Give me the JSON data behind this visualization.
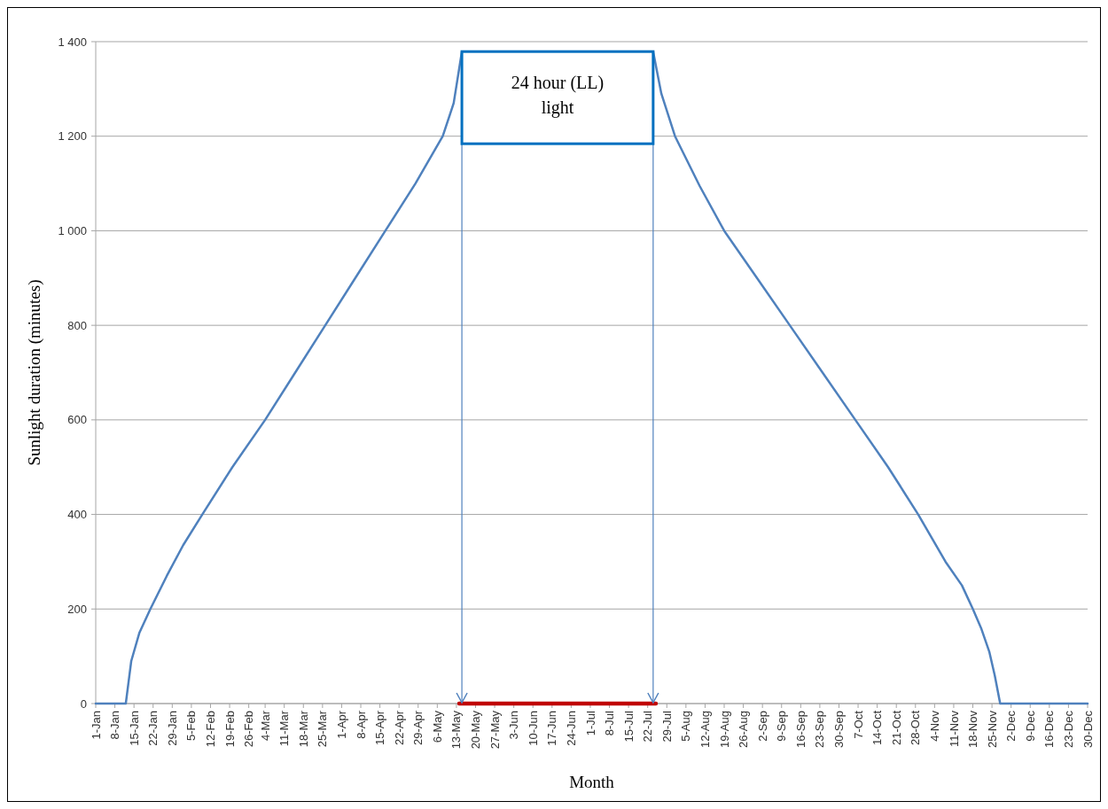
{
  "chart_data": {
    "type": "line",
    "xlabel": "Month",
    "ylabel": "Sunlight duration (minutes)",
    "series": [
      {
        "color": "#4f81bd",
        "x": [
          "--01-01",
          "--01-12",
          "--01-14",
          "--01-17",
          "--01-21",
          "--01-27",
          "--02-02",
          "--02-09",
          "--02-20",
          "--03-04",
          "--03-15",
          "--03-26",
          "--04-06",
          "--04-17",
          "--04-28",
          "--05-08",
          "--05-12",
          "--05-15"
        ],
        "values": [
          0,
          0,
          90,
          150,
          200,
          270,
          335,
          400,
          500,
          600,
          700,
          800,
          900,
          1000,
          1100,
          1200,
          1270,
          1379
        ]
      },
      {
        "color": "#4f81bd",
        "x": [
          "--07-24",
          "--07-27",
          "--08-01",
          "--08-10",
          "--08-19",
          "--08-31",
          "--09-12",
          "--09-24",
          "--10-06",
          "--10-18",
          "--10-29",
          "--11-08",
          "--11-14",
          "--11-18",
          "--11-21",
          "--11-24",
          "--11-26",
          "--11-28",
          "--12-30"
        ],
        "values": [
          1379,
          1290,
          1200,
          1095,
          1000,
          900,
          800,
          700,
          600,
          500,
          400,
          300,
          250,
          200,
          160,
          110,
          60,
          0,
          0
        ]
      },
      {
        "color": "#c00000",
        "x": [
          "--05-14",
          "--07-25"
        ],
        "values": [
          0,
          0
        ]
      }
    ],
    "xlim": [
      "--01-01",
      "--12-30"
    ],
    "xticks": [
      {
        "value": "--01-01",
        "label": "1-Jan"
      },
      {
        "value": "--01-08",
        "label": "8-Jan"
      },
      {
        "value": "--01-15",
        "label": "15-Jan"
      },
      {
        "value": "--01-22",
        "label": "22-Jan"
      },
      {
        "value": "--01-29",
        "label": "29-Jan"
      },
      {
        "value": "--02-05",
        "label": "5-Feb"
      },
      {
        "value": "--02-12",
        "label": "12-Feb"
      },
      {
        "value": "--02-19",
        "label": "19-Feb"
      },
      {
        "value": "--02-26",
        "label": "26-Feb"
      },
      {
        "value": "--03-04",
        "label": "4-Mar"
      },
      {
        "value": "--03-11",
        "label": "11-Mar"
      },
      {
        "value": "--03-18",
        "label": "18-Mar"
      },
      {
        "value": "--03-25",
        "label": "25-Mar"
      },
      {
        "value": "--04-01",
        "label": "1-Apr"
      },
      {
        "value": "--04-08",
        "label": "8-Apr"
      },
      {
        "value": "--04-15",
        "label": "15-Apr"
      },
      {
        "value": "--04-22",
        "label": "22-Apr"
      },
      {
        "value": "--04-29",
        "label": "29-Apr"
      },
      {
        "value": "--05-06",
        "label": "6-May"
      },
      {
        "value": "--05-13",
        "label": "13-May"
      },
      {
        "value": "--05-20",
        "label": "20-May"
      },
      {
        "value": "--05-27",
        "label": "27-May"
      },
      {
        "value": "--06-03",
        "label": "3-Jun"
      },
      {
        "value": "--06-10",
        "label": "10-Jun"
      },
      {
        "value": "--06-17",
        "label": "17-Jun"
      },
      {
        "value": "--06-24",
        "label": "24-Jun"
      },
      {
        "value": "--07-01",
        "label": "1-Jul"
      },
      {
        "value": "--07-08",
        "label": "8-Jul"
      },
      {
        "value": "--07-15",
        "label": "15-Jul"
      },
      {
        "value": "--07-22",
        "label": "22-Jul"
      },
      {
        "value": "--07-29",
        "label": "29-Jul"
      },
      {
        "value": "--08-05",
        "label": "5-Aug"
      },
      {
        "value": "--08-12",
        "label": "12-Aug"
      },
      {
        "value": "--08-19",
        "label": "19-Aug"
      },
      {
        "value": "--08-26",
        "label": "26-Aug"
      },
      {
        "value": "--09-02",
        "label": "2-Sep"
      },
      {
        "value": "--09-09",
        "label": "9-Sep"
      },
      {
        "value": "--09-16",
        "label": "16-Sep"
      },
      {
        "value": "--09-23",
        "label": "23-Sep"
      },
      {
        "value": "--09-30",
        "label": "30-Sep"
      },
      {
        "value": "--10-07",
        "label": "7-Oct"
      },
      {
        "value": "--10-14",
        "label": "14-Oct"
      },
      {
        "value": "--10-21",
        "label": "21-Oct"
      },
      {
        "value": "--10-28",
        "label": "28-Oct"
      },
      {
        "value": "--11-04",
        "label": "4-Nov"
      },
      {
        "value": "--11-11",
        "label": "11-Nov"
      },
      {
        "value": "--11-18",
        "label": "18-Nov"
      },
      {
        "value": "--11-25",
        "label": "25-Nov"
      },
      {
        "value": "--12-02",
        "label": "2-Dec"
      },
      {
        "value": "--12-09",
        "label": "9-Dec"
      },
      {
        "value": "--12-16",
        "label": "16-Dec"
      },
      {
        "value": "--12-23",
        "label": "23-Dec"
      },
      {
        "value": "--12-30",
        "label": "30-Dec"
      }
    ],
    "ylim": [
      0,
      1400
    ],
    "yticks": [
      0,
      200,
      400,
      600,
      800,
      {
        "value": 1000,
        "label": "1 000"
      },
      {
        "value": 1200,
        "label": "1 200"
      },
      {
        "value": 1400,
        "label": "1 400"
      }
    ],
    "ref_lines": [
      {
        "axis": "x",
        "value": "--05-15",
        "color": "#4f81bd"
      },
      {
        "axis": "x",
        "value": "--07-24",
        "color": "#4f81bd"
      }
    ],
    "grid": "y",
    "line_style": "solid",
    "marker": "none",
    "annotations": [
      "24 hour (LL) light"
    ]
  }
}
